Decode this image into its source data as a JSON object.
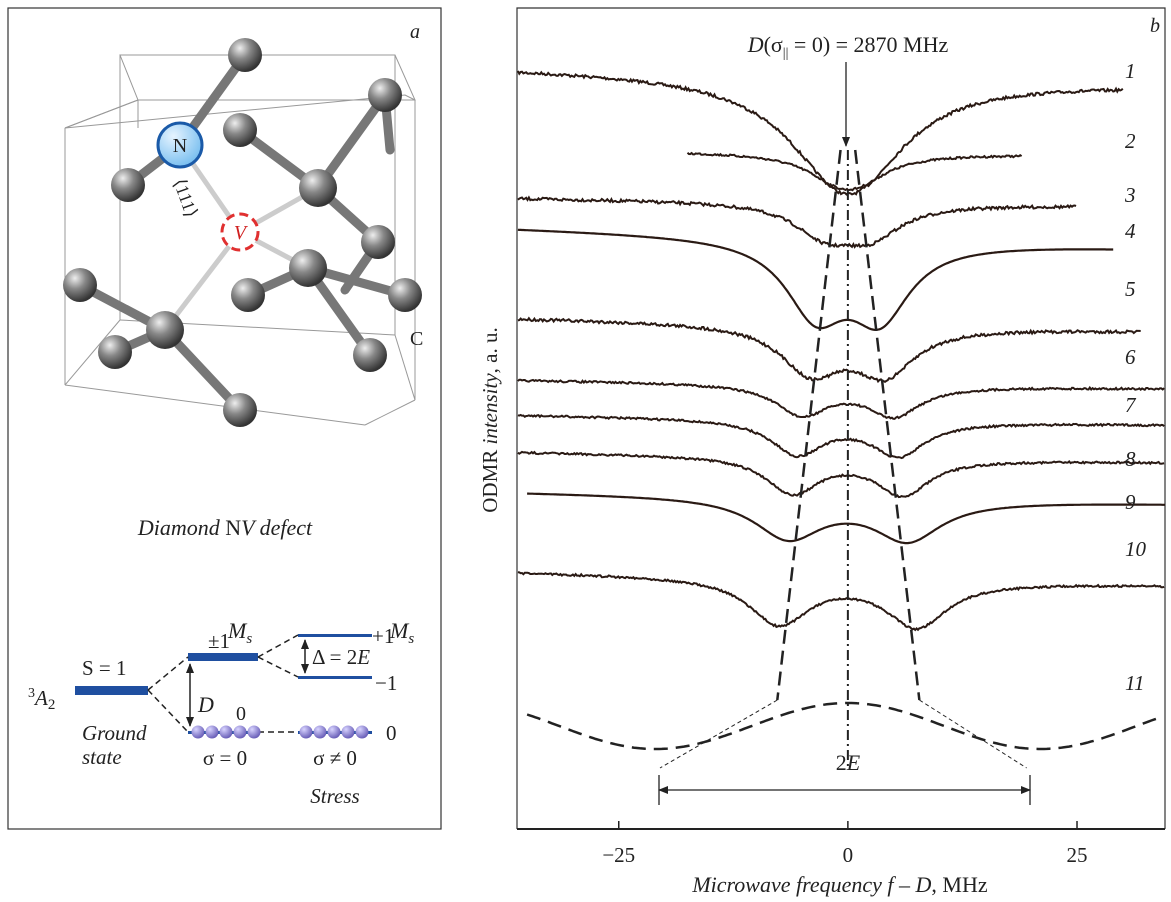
{
  "panel_a": {
    "label": "a",
    "atoms": {
      "nitrogen": "N",
      "vacancy": "V",
      "carbon": "C"
    },
    "direction": "⟨111⟩",
    "caption": [
      "Diamond ",
      "N",
      "V",
      " defect"
    ],
    "energy": {
      "ms_left": [
        "M",
        "s"
      ],
      "ms_right": [
        "M",
        "s"
      ],
      "spin": "S = 1",
      "term": [
        "3",
        "A",
        "2"
      ],
      "level_pm": "±1",
      "level_plus": "+1",
      "level_minus": "−1",
      "splitting": [
        "Δ = 2",
        "E"
      ],
      "zfs": "D",
      "zero_left": "0",
      "zero_right": "0",
      "ground": [
        "Ground",
        "state"
      ],
      "sigma_zero": "σ = 0",
      "sigma_nonzero": "σ ≠ 0",
      "stress": "Stress"
    }
  },
  "panel_b": {
    "label": "b",
    "annotation": [
      "D",
      "(σ",
      "||",
      " = 0) = 2870 MHz"
    ],
    "y_label": [
      "ODMR ",
      "intensity",
      ", a. u."
    ],
    "x_label": [
      "Microwave frequency f – D",
      ", MHz"
    ],
    "xlim": [
      -36.1,
      34.6
    ],
    "xticks": [
      {
        "value": -25,
        "label": "−25"
      },
      0,
      25
    ],
    "splitting_label": [
      "2",
      "E"
    ],
    "curve_labels": [
      "1",
      "2",
      "3",
      "4",
      "5",
      "6",
      "7",
      "8",
      "9",
      "10",
      "11"
    ]
  }
}
